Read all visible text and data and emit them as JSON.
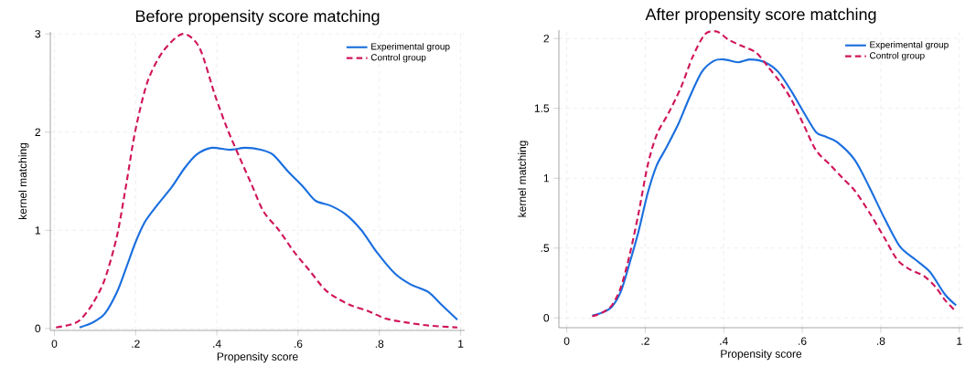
{
  "chart_data": [
    {
      "type": "line",
      "title": "Before propensity score matching",
      "xlabel": "Propensity score",
      "ylabel": "kernel matching",
      "xlim": [
        -0.01,
        1.01
      ],
      "ylim": [
        -0.02,
        3.02
      ],
      "xticks": [
        0,
        {
          "value": 0.2,
          "label": ".2"
        },
        {
          "value": 0.4,
          "label": ".4"
        },
        {
          "value": 0.6,
          "label": ".6"
        },
        {
          "value": 0.8,
          "label": ".8"
        },
        1
      ],
      "yticks": [
        0,
        1,
        2,
        3
      ],
      "grid": true,
      "legend": "top right",
      "series": [
        {
          "name": "Experimental group",
          "color": "#1a6fdf",
          "line_style": "solid",
          "x": [
            0.062,
            0.094,
            0.124,
            0.154,
            0.177,
            0.199,
            0.222,
            0.252,
            0.289,
            0.32,
            0.35,
            0.387,
            0.432,
            0.47,
            0.508,
            0.538,
            0.575,
            0.613,
            0.643,
            0.68,
            0.718,
            0.756,
            0.793,
            0.838,
            0.876,
            0.921,
            0.951,
            0.992
          ],
          "values": [
            0.01,
            0.06,
            0.15,
            0.37,
            0.62,
            0.87,
            1.08,
            1.25,
            1.44,
            1.63,
            1.77,
            1.84,
            1.82,
            1.84,
            1.82,
            1.77,
            1.6,
            1.44,
            1.3,
            1.25,
            1.16,
            1.0,
            0.78,
            0.56,
            0.45,
            0.37,
            0.25,
            0.09
          ]
        },
        {
          "name": "Control group",
          "color": "#d0155a",
          "line_style": "dashed",
          "x": [
            0.004,
            0.041,
            0.064,
            0.094,
            0.124,
            0.154,
            0.177,
            0.199,
            0.229,
            0.267,
            0.316,
            0.357,
            0.395,
            0.425,
            0.455,
            0.485,
            0.515,
            0.553,
            0.59,
            0.628,
            0.665,
            0.695,
            0.733,
            0.771,
            0.816,
            0.868,
            0.921,
            0.992
          ],
          "values": [
            0.01,
            0.04,
            0.09,
            0.25,
            0.5,
            0.94,
            1.47,
            2.01,
            2.51,
            2.82,
            3.0,
            2.86,
            2.38,
            2.04,
            1.75,
            1.47,
            1.19,
            1.0,
            0.78,
            0.59,
            0.4,
            0.31,
            0.23,
            0.18,
            0.1,
            0.06,
            0.03,
            0.01
          ]
        }
      ]
    },
    {
      "type": "line",
      "title": "After propensity score matching",
      "xlabel": "Propensity score",
      "ylabel": "kernel matching",
      "xlim": [
        -0.02,
        1.01
      ],
      "ylim": [
        -0.07,
        2.06
      ],
      "xticks": [
        0,
        {
          "value": 0.2,
          "label": ".2"
        },
        {
          "value": 0.4,
          "label": ".4"
        },
        {
          "value": 0.6,
          "label": ".6"
        },
        {
          "value": 0.8,
          "label": ".8"
        },
        1
      ],
      "yticks": [
        0,
        {
          "value": 0.5,
          "label": ".5"
        },
        1,
        1.5,
        2
      ],
      "grid": true,
      "legend": "top right",
      "series": [
        {
          "name": "Experimental group",
          "color": "#1a6fdf",
          "line_style": "solid",
          "x": [
            0.065,
            0.092,
            0.115,
            0.138,
            0.161,
            0.183,
            0.206,
            0.229,
            0.252,
            0.283,
            0.313,
            0.344,
            0.375,
            0.401,
            0.436,
            0.466,
            0.505,
            0.539,
            0.573,
            0.604,
            0.635,
            0.657,
            0.688,
            0.734,
            0.772,
            0.81,
            0.849,
            0.887,
            0.925,
            0.963,
            0.992
          ],
          "values": [
            0.016,
            0.04,
            0.08,
            0.19,
            0.4,
            0.62,
            0.89,
            1.09,
            1.21,
            1.38,
            1.58,
            1.76,
            1.84,
            1.85,
            1.83,
            1.85,
            1.83,
            1.76,
            1.62,
            1.47,
            1.33,
            1.3,
            1.26,
            1.13,
            0.93,
            0.71,
            0.51,
            0.42,
            0.33,
            0.17,
            0.09
          ]
        },
        {
          "name": "Control group",
          "color": "#d0155a",
          "line_style": "dashed",
          "x": [
            0.065,
            0.092,
            0.115,
            0.138,
            0.161,
            0.183,
            0.206,
            0.229,
            0.26,
            0.291,
            0.321,
            0.352,
            0.382,
            0.413,
            0.443,
            0.482,
            0.512,
            0.543,
            0.573,
            0.604,
            0.635,
            0.673,
            0.703,
            0.734,
            0.772,
            0.81,
            0.841,
            0.872,
            0.91,
            0.94,
            0.963,
            0.99
          ],
          "values": [
            0.011,
            0.04,
            0.09,
            0.22,
            0.46,
            0.75,
            1.09,
            1.31,
            1.47,
            1.65,
            1.87,
            2.03,
            2.05,
            1.99,
            1.95,
            1.9,
            1.8,
            1.69,
            1.56,
            1.38,
            1.2,
            1.09,
            1.0,
            0.91,
            0.75,
            0.57,
            0.42,
            0.35,
            0.3,
            0.22,
            0.13,
            0.05
          ]
        }
      ]
    }
  ]
}
